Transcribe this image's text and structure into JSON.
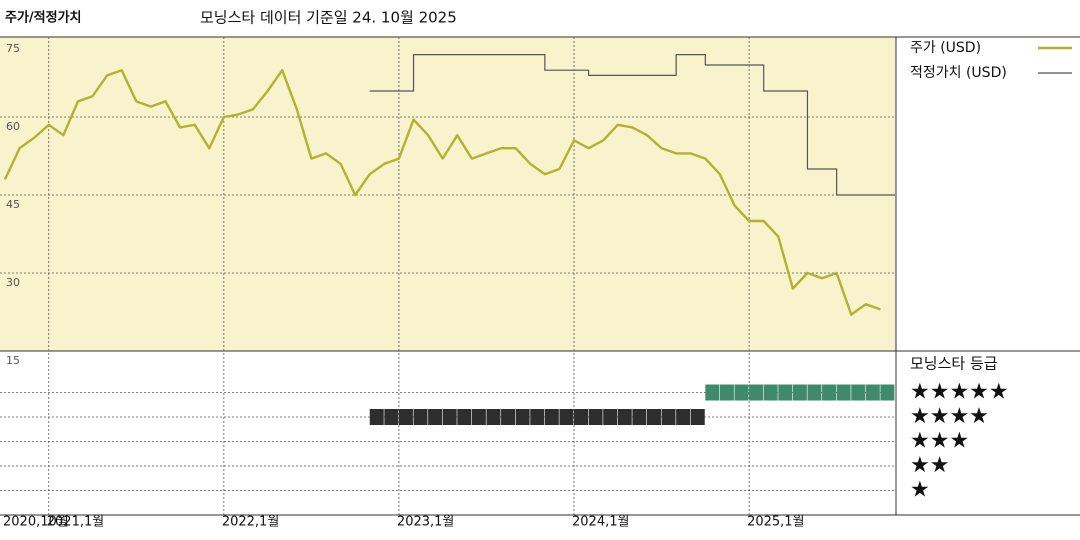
{
  "chart_data": [
    {
      "type": "line",
      "title": "주가/적정가치",
      "subtitle": "모닝스타 데이터 기준일 24. 10월 2025",
      "x": [
        "2020-10",
        "2020-11",
        "2020-12",
        "2021-01",
        "2021-02",
        "2021-03",
        "2021-04",
        "2021-05",
        "2021-06",
        "2021-07",
        "2021-08",
        "2021-09",
        "2021-10",
        "2021-11",
        "2021-12",
        "2022-01",
        "2022-02",
        "2022-03",
        "2022-04",
        "2022-05",
        "2022-06",
        "2022-07",
        "2022-08",
        "2022-09",
        "2022-10",
        "2022-11",
        "2022-12",
        "2023-01",
        "2023-02",
        "2023-03",
        "2023-04",
        "2023-05",
        "2023-06",
        "2023-07",
        "2023-08",
        "2023-09",
        "2023-10",
        "2023-11",
        "2023-12",
        "2024-01",
        "2024-02",
        "2024-03",
        "2024-04",
        "2024-05",
        "2024-06",
        "2024-07",
        "2024-08",
        "2024-09",
        "2024-10",
        "2024-11",
        "2024-12",
        "2025-01",
        "2025-02",
        "2025-03",
        "2025-04",
        "2025-05",
        "2025-06",
        "2025-07",
        "2025-08",
        "2025-09",
        "2025-10"
      ],
      "xlim": [
        "2020-10",
        "2025-11"
      ],
      "xticks": [
        {
          "value": "2020-10",
          "label": "2020,10월"
        },
        {
          "value": "2021-01",
          "label": "2021,1월"
        },
        {
          "value": "2022-01",
          "label": "2022,1월"
        },
        {
          "value": "2023-01",
          "label": "2023,1월"
        },
        {
          "value": "2024-01",
          "label": "2024,1월"
        },
        {
          "value": "2025-01",
          "label": "2025,1월"
        }
      ],
      "ylim": [
        15,
        75
      ],
      "yticks": [
        15,
        30,
        45,
        60,
        75
      ],
      "grid": true,
      "series": [
        {
          "name": "주가 (USD)",
          "color": "#b3b22c",
          "values": [
            48,
            54,
            56,
            58.5,
            56.5,
            63,
            64,
            68,
            69,
            63,
            62,
            63,
            58,
            58.5,
            54,
            60,
            60.5,
            61.5,
            65,
            69,
            61.5,
            52,
            53,
            51,
            45,
            49,
            51,
            52,
            59.5,
            56.5,
            52,
            56.5,
            52,
            53,
            54,
            54,
            51,
            49,
            50,
            55.5,
            54,
            55.5,
            58.5,
            58,
            56.5,
            54,
            53,
            53,
            52,
            49,
            43,
            40,
            40,
            37,
            27,
            30,
            29,
            30,
            22,
            24,
            23
          ]
        },
        {
          "name": "적정가치 (USD)",
          "color": "#555555",
          "step": true,
          "values": [
            null,
            null,
            null,
            null,
            null,
            null,
            null,
            null,
            null,
            null,
            null,
            null,
            null,
            null,
            null,
            null,
            null,
            null,
            null,
            null,
            null,
            null,
            null,
            null,
            null,
            65,
            65,
            65,
            72,
            72,
            72,
            72,
            72,
            72,
            72,
            72,
            72,
            69,
            69,
            69,
            68,
            68,
            68,
            68,
            68,
            68,
            72,
            72,
            70,
            70,
            70,
            70,
            65,
            65,
            65,
            50,
            50,
            45,
            45,
            45,
            45
          ]
        }
      ]
    },
    {
      "type": "rating",
      "title": "모닝스타 등급",
      "levels": [
        {
          "value": 5,
          "label": "★★★★★"
        },
        {
          "value": 4,
          "label": "★★★★"
        },
        {
          "value": 3,
          "label": "★★★"
        },
        {
          "value": 2,
          "label": "★★"
        },
        {
          "value": 1,
          "label": "★"
        }
      ],
      "rating_colors": {
        "4": "#2e2e2e",
        "5": "#3f8a6f"
      },
      "values": [
        null,
        null,
        null,
        null,
        null,
        null,
        null,
        null,
        null,
        null,
        null,
        null,
        null,
        null,
        null,
        null,
        null,
        null,
        null,
        null,
        null,
        null,
        null,
        null,
        null,
        4,
        4,
        4,
        4,
        4,
        4,
        4,
        4,
        4,
        4,
        4,
        4,
        4,
        4,
        4,
        4,
        4,
        4,
        4,
        4,
        4,
        4,
        4,
        5,
        5,
        5,
        5,
        5,
        5,
        5,
        5,
        5,
        5,
        5,
        5,
        5
      ]
    }
  ]
}
